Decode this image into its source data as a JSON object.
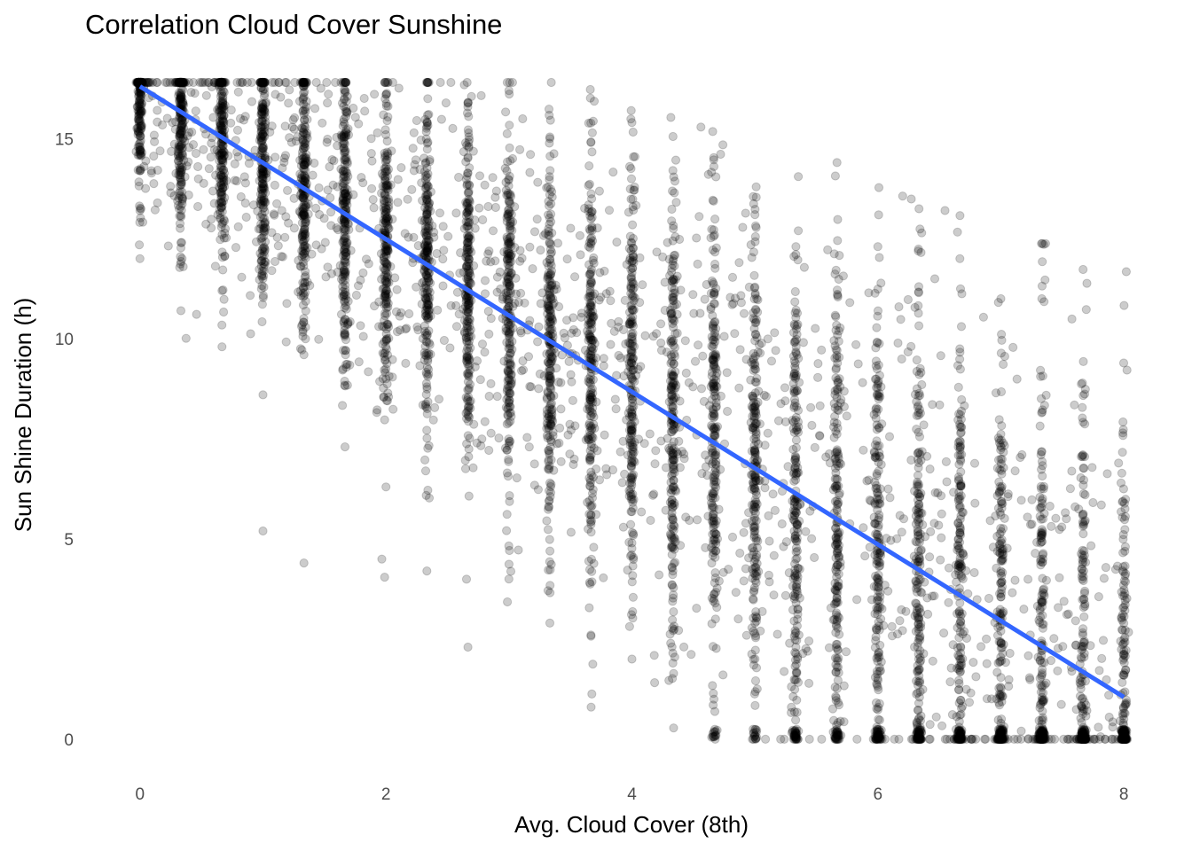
{
  "chart_data": {
    "type": "scatter",
    "title": "Correlation Cloud Cover Sunshine",
    "xlabel": "Avg. Cloud Cover (8th)",
    "ylabel": "Sun Shine Duration (h)",
    "xlim": [
      -0.15,
      8.15
    ],
    "ylim": [
      -0.8,
      16.6
    ],
    "x_ticks": [
      0,
      2,
      4,
      6,
      8
    ],
    "y_ticks": [
      0,
      5,
      10,
      15
    ],
    "grid": false,
    "legend": "none",
    "point_color": "#000000",
    "point_opacity": 0.2,
    "x_levels": [
      0,
      0.333,
      0.667,
      1,
      1.333,
      1.667,
      2,
      2.333,
      2.667,
      3,
      3.333,
      3.667,
      4,
      4.333,
      4.667,
      5,
      5.333,
      5.667,
      6,
      6.333,
      6.667,
      7,
      7.333,
      7.667,
      8
    ],
    "point_count_estimate": 14000,
    "sample_points": [
      {
        "x": 0,
        "y": 15.9
      },
      {
        "x": 0,
        "y": 14.7
      },
      {
        "x": 0,
        "y": 13.2
      },
      {
        "x": 0,
        "y": 12.0
      },
      {
        "x": 0.333,
        "y": 16.0
      },
      {
        "x": 0.333,
        "y": 14.2
      },
      {
        "x": 0.333,
        "y": 12.4
      },
      {
        "x": 0.333,
        "y": 10.7
      },
      {
        "x": 0.667,
        "y": 15.8
      },
      {
        "x": 0.667,
        "y": 13.4
      },
      {
        "x": 0.667,
        "y": 11.2
      },
      {
        "x": 0.667,
        "y": 9.8
      },
      {
        "x": 1,
        "y": 16.2
      },
      {
        "x": 1,
        "y": 14.0
      },
      {
        "x": 1,
        "y": 11.5
      },
      {
        "x": 1,
        "y": 8.6
      },
      {
        "x": 1,
        "y": 5.2
      },
      {
        "x": 1.333,
        "y": 15.6
      },
      {
        "x": 1.333,
        "y": 12.7
      },
      {
        "x": 1.333,
        "y": 9.6
      },
      {
        "x": 1.333,
        "y": 4.4
      },
      {
        "x": 1.667,
        "y": 16.2
      },
      {
        "x": 1.667,
        "y": 13.1
      },
      {
        "x": 1.667,
        "y": 10.1
      },
      {
        "x": 1.667,
        "y": 7.3
      },
      {
        "x": 2,
        "y": 16.1
      },
      {
        "x": 2,
        "y": 12.5
      },
      {
        "x": 2,
        "y": 9.0
      },
      {
        "x": 2,
        "y": 6.3
      },
      {
        "x": 2.333,
        "y": 15.3
      },
      {
        "x": 2.333,
        "y": 12.2
      },
      {
        "x": 2.333,
        "y": 8.8
      },
      {
        "x": 2.333,
        "y": 4.2
      },
      {
        "x": 2.667,
        "y": 15.9
      },
      {
        "x": 2.667,
        "y": 11.5
      },
      {
        "x": 2.667,
        "y": 8.1
      },
      {
        "x": 2.667,
        "y": 2.3
      },
      {
        "x": 3,
        "y": 16.2
      },
      {
        "x": 3,
        "y": 11.0
      },
      {
        "x": 3,
        "y": 7.4
      },
      {
        "x": 3,
        "y": 4.0
      },
      {
        "x": 3.333,
        "y": 15.0
      },
      {
        "x": 3.333,
        "y": 10.2
      },
      {
        "x": 3.333,
        "y": 6.4
      },
      {
        "x": 3.333,
        "y": 2.9
      },
      {
        "x": 3.667,
        "y": 14.9
      },
      {
        "x": 3.667,
        "y": 9.6
      },
      {
        "x": 3.667,
        "y": 5.6
      },
      {
        "x": 3.667,
        "y": 2.6
      },
      {
        "x": 4,
        "y": 15.4
      },
      {
        "x": 4,
        "y": 9.0
      },
      {
        "x": 4,
        "y": 4.9
      },
      {
        "x": 4,
        "y": 2.0
      },
      {
        "x": 4.333,
        "y": 14.2
      },
      {
        "x": 4.333,
        "y": 8.3
      },
      {
        "x": 4.333,
        "y": 4.2
      },
      {
        "x": 4.333,
        "y": 1.9
      },
      {
        "x": 4.667,
        "y": 14.3
      },
      {
        "x": 4.667,
        "y": 7.6
      },
      {
        "x": 4.667,
        "y": 3.5
      },
      {
        "x": 4.667,
        "y": 1.0
      },
      {
        "x": 5,
        "y": 13.1
      },
      {
        "x": 5,
        "y": 6.9
      },
      {
        "x": 5,
        "y": 2.9
      },
      {
        "x": 5,
        "y": 0.1
      },
      {
        "x": 5.333,
        "y": 12.3
      },
      {
        "x": 5.333,
        "y": 6.2
      },
      {
        "x": 5.333,
        "y": 2.3
      },
      {
        "x": 5.333,
        "y": 0.1
      },
      {
        "x": 5.667,
        "y": 14.4
      },
      {
        "x": 5.667,
        "y": 5.4
      },
      {
        "x": 5.667,
        "y": 1.8
      },
      {
        "x": 5.667,
        "y": 0.1
      },
      {
        "x": 6,
        "y": 12.3
      },
      {
        "x": 6,
        "y": 4.8
      },
      {
        "x": 6,
        "y": 1.3
      },
      {
        "x": 6,
        "y": 0.1
      },
      {
        "x": 6.333,
        "y": 11.3
      },
      {
        "x": 6.333,
        "y": 4.1
      },
      {
        "x": 6.333,
        "y": 0.9
      },
      {
        "x": 6.333,
        "y": 0.1
      },
      {
        "x": 6.667,
        "y": 12.0
      },
      {
        "x": 6.667,
        "y": 3.4
      },
      {
        "x": 6.667,
        "y": 0.6
      },
      {
        "x": 6.667,
        "y": 0.1
      },
      {
        "x": 7,
        "y": 11.0
      },
      {
        "x": 7,
        "y": 2.7
      },
      {
        "x": 7,
        "y": 0.4
      },
      {
        "x": 7,
        "y": 0.1
      },
      {
        "x": 7.333,
        "y": 11.0
      },
      {
        "x": 7.333,
        "y": 3.6
      },
      {
        "x": 7.333,
        "y": 1.3
      },
      {
        "x": 7.333,
        "y": 0.1
      },
      {
        "x": 7.667,
        "y": 7.1
      },
      {
        "x": 7.667,
        "y": 2.6
      },
      {
        "x": 7.667,
        "y": 0.7
      },
      {
        "x": 7.667,
        "y": 0.1
      },
      {
        "x": 8,
        "y": 3.3
      },
      {
        "x": 8,
        "y": 1.6
      },
      {
        "x": 8,
        "y": 0.5
      },
      {
        "x": 8,
        "y": 0.1
      }
    ],
    "trend_line": {
      "type": "linear",
      "color": "#3366FF",
      "x": [
        0,
        8
      ],
      "y": [
        16.3,
        1.05
      ]
    }
  }
}
